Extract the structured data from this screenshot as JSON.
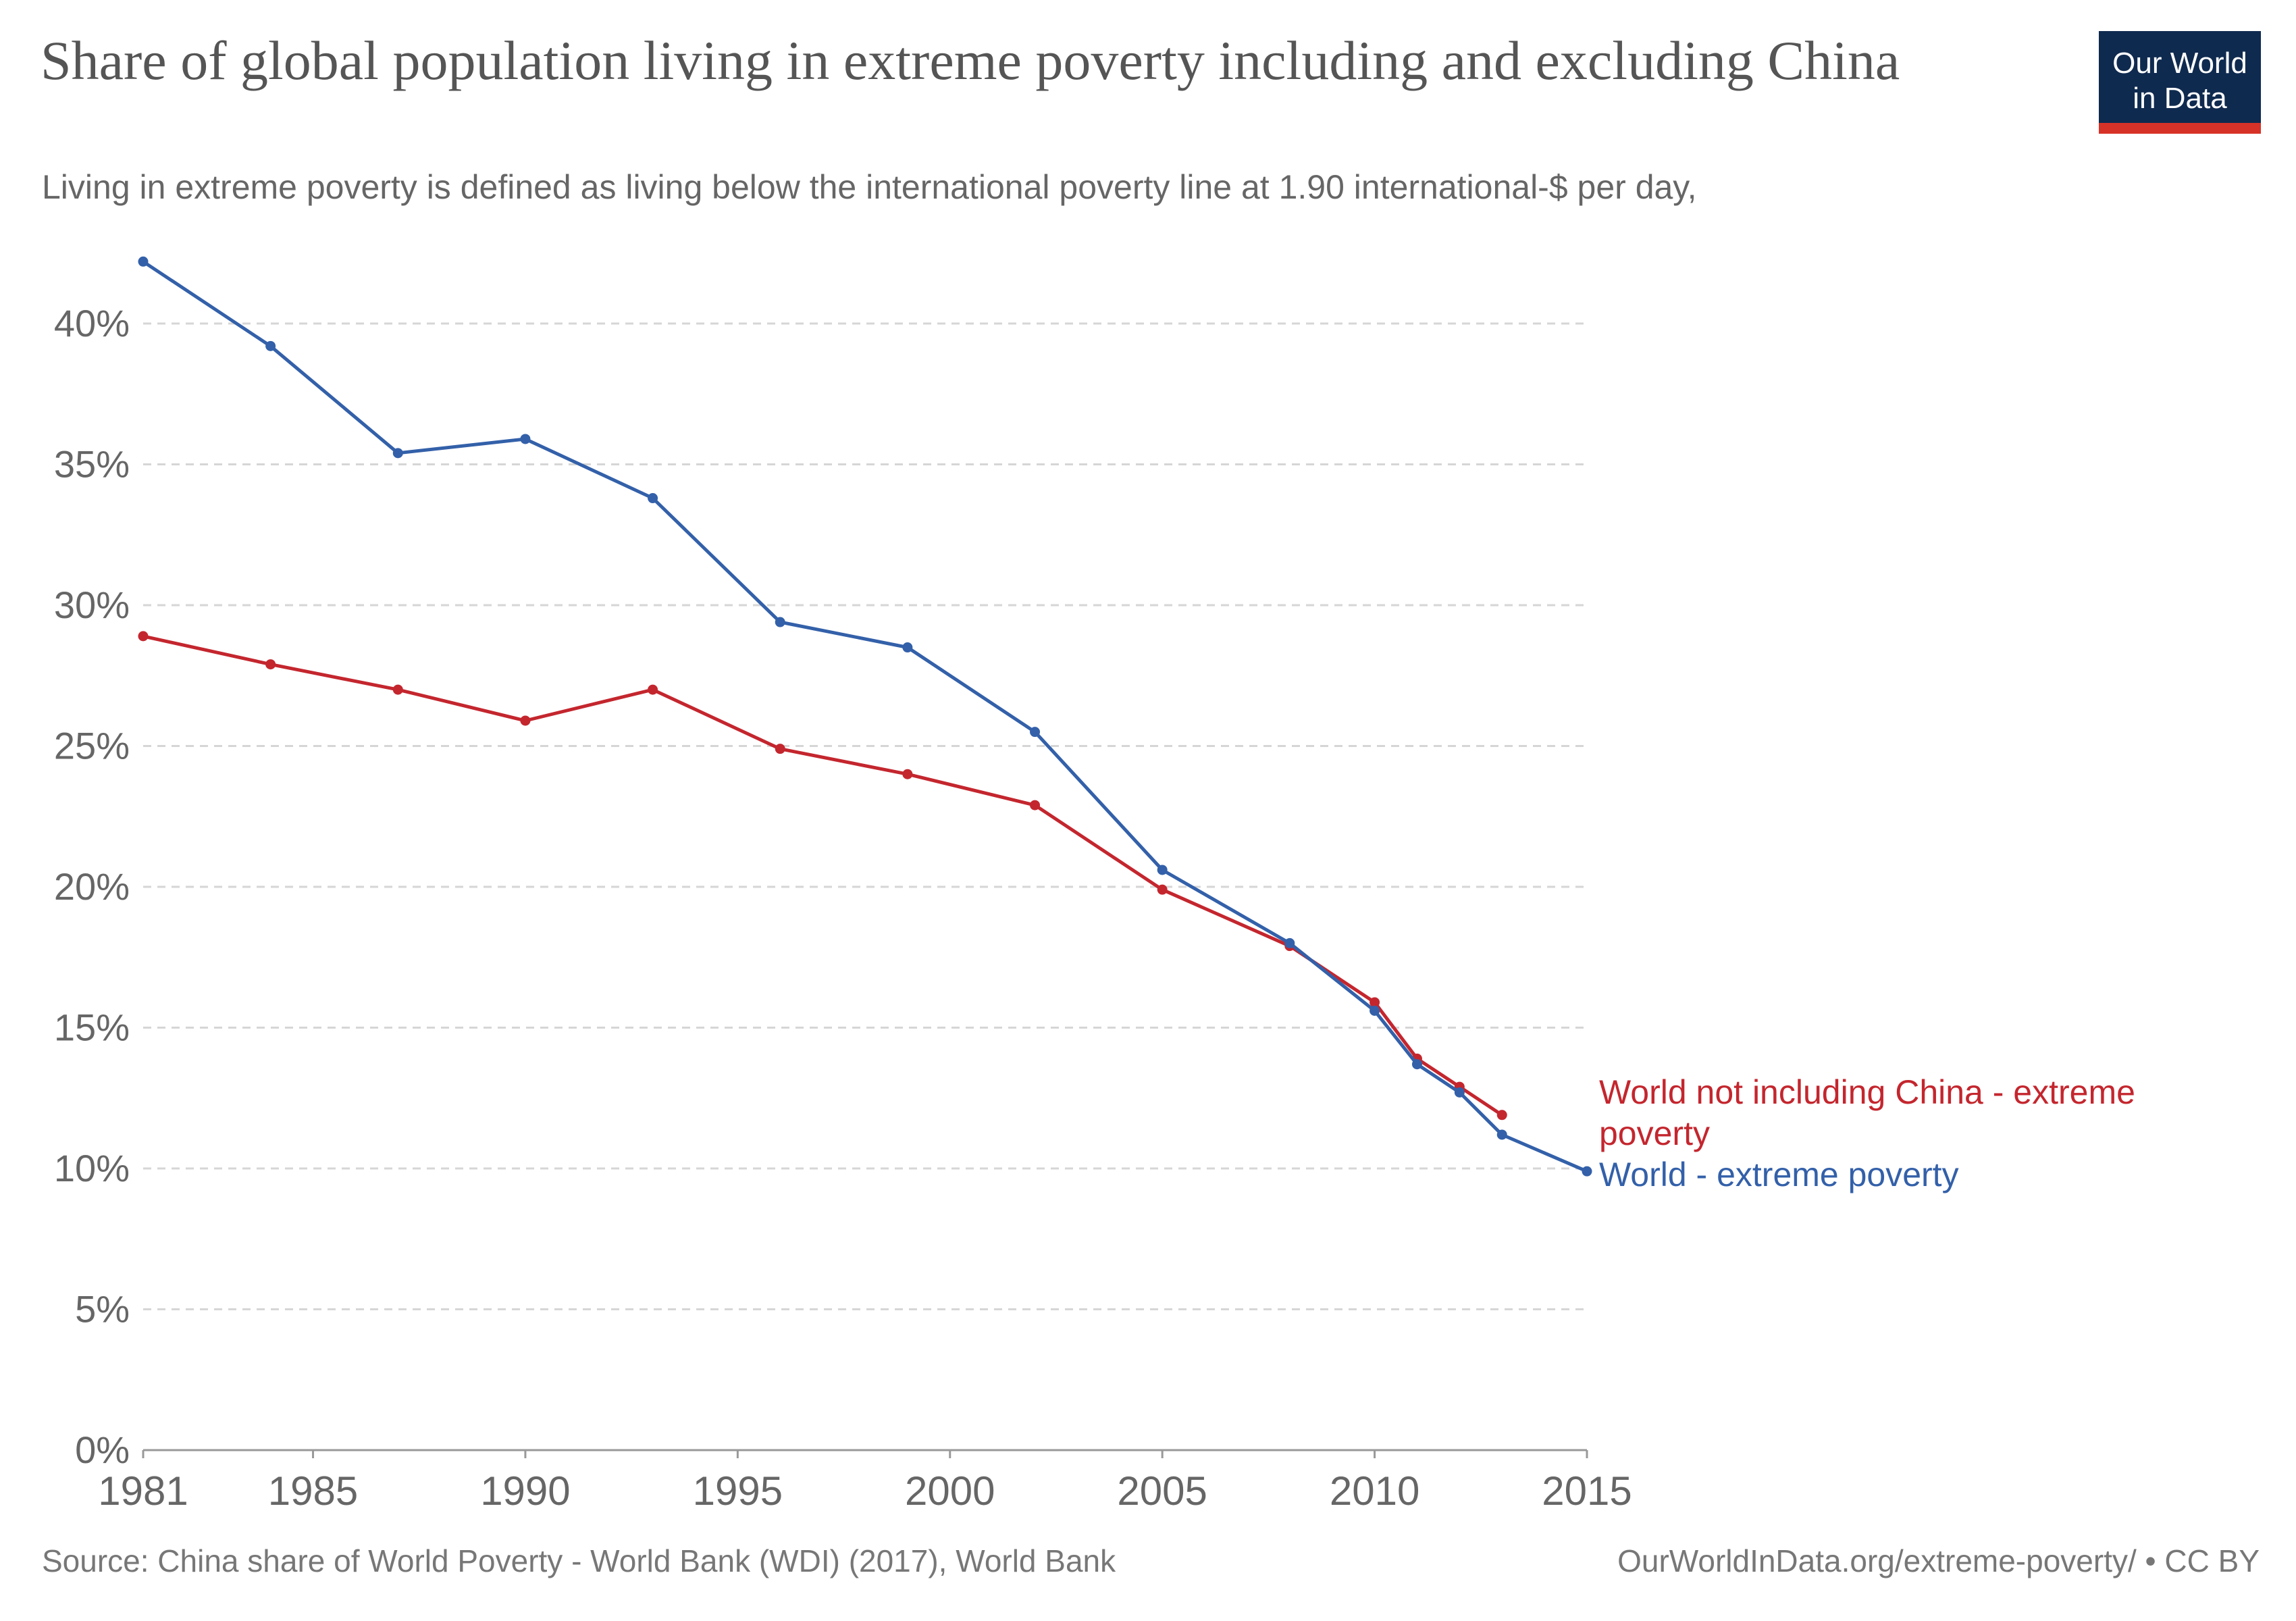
{
  "header": {
    "title": "Share of global population living in extreme poverty including and excluding China",
    "subtitle": "Living in extreme poverty is defined as living below the international poverty line at 1.90 international-$ per day,"
  },
  "logo": {
    "line1": "Our World",
    "line2": "in Data",
    "bg_color": "#0f2a4f",
    "accent_color": "#d73227"
  },
  "footer": {
    "source": "Source: China share of World Poverty - World Bank (WDI) (2017), World Bank",
    "license": "OurWorldInData.org/extreme-poverty/ • CC BY"
  },
  "chart_data": {
    "type": "line",
    "xlim": [
      1981,
      2015
    ],
    "ylim": [
      0,
      42
    ],
    "x_ticks": [
      1981,
      1985,
      1990,
      1995,
      2000,
      2005,
      2010,
      2015
    ],
    "y_ticks": [
      0,
      5,
      10,
      15,
      20,
      25,
      30,
      35,
      40
    ],
    "y_tick_labels": [
      "0%",
      "5%",
      "10%",
      "15%",
      "20%",
      "25%",
      "30%",
      "35%",
      "40%"
    ],
    "grid": "horizontal-dashed",
    "legend": "inline-right",
    "series": [
      {
        "name": "World not including China - extreme poverty",
        "color": "#c4262e",
        "points": [
          [
            1981,
            28.9
          ],
          [
            1984,
            27.9
          ],
          [
            1987,
            27.0
          ],
          [
            1990,
            25.9
          ],
          [
            1993,
            27.0
          ],
          [
            1996,
            24.9
          ],
          [
            1999,
            24.0
          ],
          [
            2002,
            22.9
          ],
          [
            2005,
            19.9
          ],
          [
            2008,
            17.9
          ],
          [
            2010,
            15.9
          ],
          [
            2011,
            13.9
          ],
          [
            2012,
            12.9
          ],
          [
            2013,
            11.9
          ]
        ]
      },
      {
        "name": "World - extreme poverty",
        "color": "#3360a9",
        "points": [
          [
            1981,
            42.2
          ],
          [
            1984,
            39.2
          ],
          [
            1987,
            35.4
          ],
          [
            1990,
            35.9
          ],
          [
            1993,
            33.8
          ],
          [
            1996,
            29.4
          ],
          [
            1999,
            28.5
          ],
          [
            2002,
            25.5
          ],
          [
            2005,
            20.6
          ],
          [
            2008,
            18.0
          ],
          [
            2010,
            15.6
          ],
          [
            2011,
            13.7
          ],
          [
            2012,
            12.7
          ],
          [
            2013,
            11.2
          ],
          [
            2015,
            9.9
          ]
        ]
      }
    ]
  }
}
